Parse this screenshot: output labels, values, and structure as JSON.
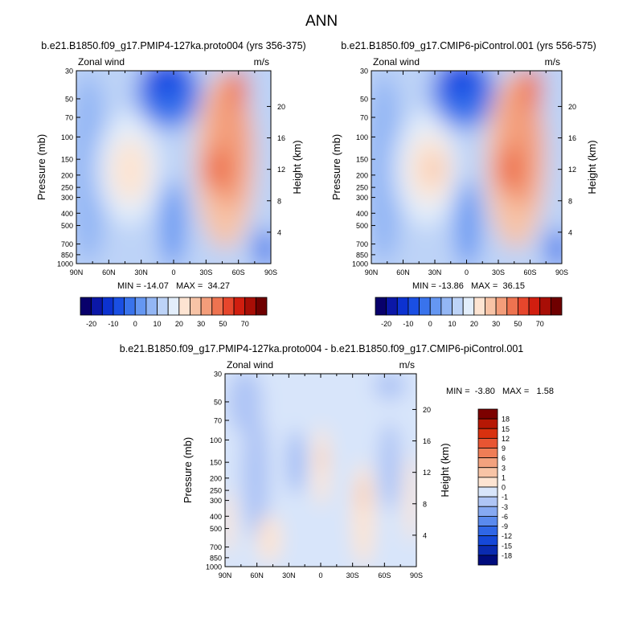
{
  "figure_title": "ANN",
  "colors": {
    "zonal_wind_levels": [
      "#08006b",
      "#0b17a7",
      "#0c32d0",
      "#1a4fe3",
      "#3973ec",
      "#6597f2",
      "#93b6f4",
      "#bdd3f7",
      "#e3eefb",
      "#fde4d2",
      "#f7c3a6",
      "#f39d7a",
      "#ee7350",
      "#e6462c",
      "#d11e0f",
      "#a80e06",
      "#6f0000"
    ],
    "difference_levels": [
      "#000c7d",
      "#0a2bb0",
      "#1548d8",
      "#2f66e6",
      "#5a8aee",
      "#86a9f2",
      "#afc5f5",
      "#d8e5fa",
      "#fde4d2",
      "#f8c4a6",
      "#f3a27e",
      "#ef7d56",
      "#e85532",
      "#d8310f",
      "#b61704",
      "#7c0100"
    ]
  },
  "chart_data": [
    {
      "type": "heatmap",
      "title": "b.e21.B1850.f09_g17.PMIP4-127ka.proto004 (yrs 356-375)",
      "left_label": "Zonal wind",
      "right_label": "m/s",
      "ylabel": "Pressure (mb)",
      "y2label": "Height (km)",
      "x_ticks": [
        "90N",
        "60N",
        "30N",
        "0",
        "30S",
        "60S",
        "90S"
      ],
      "x_values": [
        90,
        60,
        30,
        0,
        -30,
        -60,
        -90
      ],
      "xlim": [
        90,
        -90
      ],
      "y_ticks": [
        "30",
        "50",
        "70",
        "100",
        "150",
        "200",
        "250",
        "300",
        "400",
        "500",
        "700",
        "850",
        "1000"
      ],
      "y_values": [
        30,
        50,
        70,
        100,
        150,
        200,
        250,
        300,
        400,
        500,
        700,
        850,
        1000
      ],
      "ylim": [
        1000,
        30
      ],
      "y_scale": "log",
      "y2_ticks": [
        "20",
        "16",
        "12",
        "8",
        "4"
      ],
      "y2_values": [
        20,
        16,
        12,
        8,
        4
      ],
      "stats": "MIN = -14.07   MAX =  34.27",
      "colorbar": {
        "levels": [
          -25,
          -20,
          -15,
          -10,
          -5,
          0,
          5,
          10,
          15,
          20,
          25,
          30,
          35,
          40,
          50,
          60,
          70
        ],
        "labels": [
          "-20",
          "-10",
          "0",
          "10",
          "20",
          "30",
          "50",
          "70"
        ]
      },
      "min": -14.07,
      "max": 34.27
    },
    {
      "type": "heatmap",
      "title": "b.e21.B1850.f09_g17.CMIP6-piControl.001 (yrs 556-575)",
      "left_label": "Zonal wind",
      "right_label": "m/s",
      "ylabel": "Pressure (mb)",
      "y2label": "Height (km)",
      "x_ticks": [
        "90N",
        "60N",
        "30N",
        "0",
        "30S",
        "60S",
        "90S"
      ],
      "x_values": [
        90,
        60,
        30,
        0,
        -30,
        -60,
        -90
      ],
      "xlim": [
        90,
        -90
      ],
      "y_ticks": [
        "30",
        "50",
        "70",
        "100",
        "150",
        "200",
        "250",
        "300",
        "400",
        "500",
        "700",
        "850",
        "1000"
      ],
      "y_values": [
        30,
        50,
        70,
        100,
        150,
        200,
        250,
        300,
        400,
        500,
        700,
        850,
        1000
      ],
      "ylim": [
        1000,
        30
      ],
      "y_scale": "log",
      "y2_ticks": [
        "20",
        "16",
        "12",
        "8",
        "4"
      ],
      "y2_values": [
        20,
        16,
        12,
        8,
        4
      ],
      "stats": "MIN = -13.86   MAX =  36.15",
      "colorbar": {
        "levels": [
          -25,
          -20,
          -15,
          -10,
          -5,
          0,
          5,
          10,
          15,
          20,
          25,
          30,
          35,
          40,
          50,
          60,
          70
        ],
        "labels": [
          "-20",
          "-10",
          "0",
          "10",
          "20",
          "30",
          "50",
          "70"
        ]
      },
      "min": -13.86,
      "max": 36.15
    },
    {
      "type": "heatmap",
      "title": "b.e21.B1850.f09_g17.PMIP4-127ka.proto004 - b.e21.B1850.f09_g17.CMIP6-piControl.001",
      "left_label": "Zonal wind",
      "right_label": "m/s",
      "ylabel": "Pressure (mb)",
      "y2label": "Height (km)",
      "x_ticks": [
        "90N",
        "60N",
        "30N",
        "0",
        "30S",
        "60S",
        "90S"
      ],
      "x_values": [
        90,
        60,
        30,
        0,
        -30,
        -60,
        -90
      ],
      "xlim": [
        90,
        -90
      ],
      "y_ticks": [
        "30",
        "50",
        "70",
        "100",
        "150",
        "200",
        "250",
        "300",
        "400",
        "500",
        "700",
        "850",
        "1000"
      ],
      "y_values": [
        30,
        50,
        70,
        100,
        150,
        200,
        250,
        300,
        400,
        500,
        700,
        850,
        1000
      ],
      "ylim": [
        1000,
        30
      ],
      "y_scale": "log",
      "y2_ticks": [
        "20",
        "16",
        "12",
        "8",
        "4"
      ],
      "y2_values": [
        20,
        16,
        12,
        8,
        4
      ],
      "stats": "MIN =  -3.80   MAX =   1.58",
      "colorbar": {
        "levels": [
          -18,
          -15,
          -12,
          -9,
          -6,
          -3,
          -1,
          0,
          1,
          3,
          6,
          9,
          12,
          15,
          18
        ],
        "labels": [
          "18",
          "15",
          "12",
          "9",
          "6",
          "3",
          "1",
          "0",
          "-1",
          "-3",
          "-6",
          "-9",
          "-12",
          "-15",
          "-18"
        ]
      },
      "min": -3.8,
      "max": 1.58
    }
  ]
}
